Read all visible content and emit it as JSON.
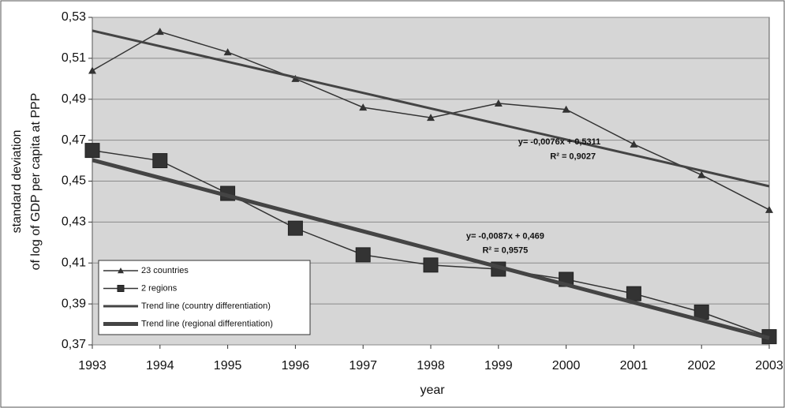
{
  "chart_data": {
    "type": "line",
    "xlabel": "year",
    "ylabel": [
      "standard deviation",
      "of log of GDP per capita at PPP"
    ],
    "x": [
      1993,
      1994,
      1995,
      1996,
      1997,
      1998,
      1999,
      2000,
      2001,
      2002,
      2003
    ],
    "xlim": [
      1993,
      2003
    ],
    "xticks": [
      1993,
      1994,
      1995,
      1996,
      1997,
      1998,
      1999,
      2000,
      2001,
      2002,
      2003
    ],
    "ylim": [
      0.37,
      0.53
    ],
    "yticks": [
      {
        "value": 0.37,
        "label": "0,37"
      },
      {
        "value": 0.39,
        "label": "0,39"
      },
      {
        "value": 0.41,
        "label": "0,41"
      },
      {
        "value": 0.43,
        "label": "0,43"
      },
      {
        "value": 0.45,
        "label": "0,45"
      },
      {
        "value": 0.47,
        "label": "0,47"
      },
      {
        "value": 0.49,
        "label": "0,49"
      },
      {
        "value": 0.51,
        "label": "0,51"
      },
      {
        "value": 0.53,
        "label": "0,53"
      }
    ],
    "grid": true,
    "legend": "lower left",
    "series": [
      {
        "name": "23 countries",
        "color": "#333333",
        "marker": "triangle",
        "width": 1.5,
        "values": [
          0.504,
          0.523,
          0.513,
          0.5,
          0.486,
          0.481,
          0.488,
          0.485,
          0.468,
          0.453,
          0.436
        ]
      },
      {
        "name": "2 regions",
        "color": "#333333",
        "marker": "square",
        "width": 1.5,
        "values": [
          0.465,
          0.46,
          0.444,
          0.427,
          0.414,
          0.409,
          0.407,
          0.402,
          0.395,
          0.386,
          0.374
        ]
      },
      {
        "name": "Trend line (country differentiation)",
        "color": "#444444",
        "marker": "none",
        "width": 3,
        "values": [
          0.5235,
          0.5159,
          0.5083,
          0.5007,
          0.4931,
          0.4855,
          0.4779,
          0.4703,
          0.4627,
          0.4551,
          0.4475
        ]
      },
      {
        "name": "Trend line (regional differentiation)",
        "color": "#444444",
        "marker": "none",
        "width": 5,
        "values": [
          0.4603,
          0.4516,
          0.4429,
          0.4342,
          0.4255,
          0.4168,
          0.4081,
          0.3994,
          0.3907,
          0.382,
          0.3733
        ]
      }
    ],
    "annotations": [
      {
        "text": "y= -0,0076x + 0,5311",
        "x": 1999.9,
        "y": 0.469
      },
      {
        "text": "R² = 0,9027",
        "x": 2000.1,
        "y": 0.462
      },
      {
        "text": "y= -0,0087x + 0,469",
        "x": 1999.1,
        "y": 0.423
      },
      {
        "text": "R² = 0,9575",
        "x": 1999.1,
        "y": 0.416
      }
    ]
  }
}
